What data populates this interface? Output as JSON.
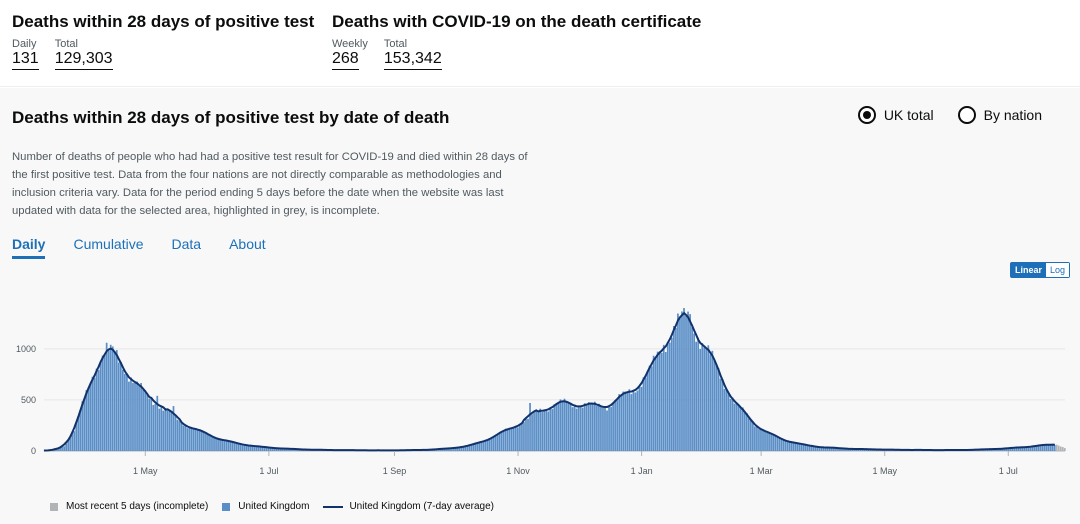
{
  "headline": {
    "left": {
      "title": "Deaths within 28 days of positive test",
      "metrics": [
        {
          "label": "Daily",
          "value": "131"
        },
        {
          "label": "Total",
          "value": "129,303"
        }
      ]
    },
    "right": {
      "title": "Deaths with COVID-19 on the death certificate",
      "metrics": [
        {
          "label": "Weekly",
          "value": "268"
        },
        {
          "label": "Total",
          "value": "153,342"
        }
      ]
    }
  },
  "card": {
    "title": "Deaths within 28 days of positive test by date of death",
    "radio_uk": "UK total",
    "radio_nation": "By nation",
    "description": "Number of deaths of people who had had a positive test result for COVID-19 and died within 28 days of the first positive test. Data from the four nations are not directly comparable as methodologies and inclusion criteria vary. Data for the period ending 5 days before the date when the website was last updated with data for the selected area, highlighted in grey, is incomplete.",
    "tabs": [
      "Daily",
      "Cumulative",
      "Data",
      "About"
    ],
    "scale_linear": "Linear",
    "scale_log": "Log"
  },
  "legend": {
    "incomplete": "Most recent 5 days (incomplete)",
    "uk": "United Kingdom",
    "avg": "United Kingdom (7-day average)"
  },
  "colors": {
    "bar": "#5a8ec7",
    "incomplete": "#b1b4b6",
    "line": "#12326b",
    "link": "#1d70b8"
  },
  "chart_data": {
    "type": "bar",
    "title": "Deaths within 28 days of positive test by date of death",
    "xlabel": "",
    "ylabel": "",
    "ylim": [
      0,
      1400
    ],
    "yticks": [
      0,
      500,
      1000
    ],
    "xticks": [
      {
        "day": 50,
        "label": "1 May"
      },
      {
        "day": 111,
        "label": "1 Jul"
      },
      {
        "day": 173,
        "label": "1 Sep"
      },
      {
        "day": 234,
        "label": "1 Nov"
      },
      {
        "day": 295,
        "label": "1 Jan"
      },
      {
        "day": 354,
        "label": "1 Mar"
      },
      {
        "day": 415,
        "label": "1 May"
      },
      {
        "day": 476,
        "label": "1 Jul"
      }
    ],
    "x_start": "2020-03-12",
    "days": 505,
    "incomplete_days": 5,
    "series": [
      {
        "name": "United Kingdom",
        "type": "bar"
      },
      {
        "name": "United Kingdom (7-day average)",
        "type": "line"
      }
    ],
    "daily_anchors": [
      [
        0,
        2
      ],
      [
        5,
        10
      ],
      [
        10,
        50
      ],
      [
        15,
        200
      ],
      [
        20,
        500
      ],
      [
        25,
        800
      ],
      [
        30,
        970
      ],
      [
        35,
        950
      ],
      [
        40,
        820
      ],
      [
        45,
        660
      ],
      [
        50,
        560
      ],
      [
        55,
        480
      ],
      [
        60,
        400
      ],
      [
        65,
        320
      ],
      [
        70,
        260
      ],
      [
        75,
        210
      ],
      [
        80,
        170
      ],
      [
        85,
        130
      ],
      [
        90,
        100
      ],
      [
        95,
        75
      ],
      [
        100,
        60
      ],
      [
        105,
        45
      ],
      [
        110,
        35
      ],
      [
        120,
        22
      ],
      [
        130,
        14
      ],
      [
        140,
        10
      ],
      [
        150,
        8
      ],
      [
        160,
        7
      ],
      [
        170,
        6
      ],
      [
        180,
        8
      ],
      [
        190,
        12
      ],
      [
        200,
        25
      ],
      [
        210,
        50
      ],
      [
        220,
        120
      ],
      [
        230,
        220
      ],
      [
        238,
        300
      ],
      [
        245,
        400
      ],
      [
        252,
        450
      ],
      [
        258,
        470
      ],
      [
        265,
        455
      ],
      [
        272,
        440
      ],
      [
        278,
        445
      ],
      [
        285,
        520
      ],
      [
        292,
        620
      ],
      [
        300,
        800
      ],
      [
        306,
        1050
      ],
      [
        312,
        1240
      ],
      [
        317,
        1300
      ],
      [
        322,
        1180
      ],
      [
        327,
        1000
      ],
      [
        335,
        700
      ],
      [
        342,
        450
      ],
      [
        350,
        280
      ],
      [
        357,
        180
      ],
      [
        365,
        110
      ],
      [
        375,
        60
      ],
      [
        385,
        35
      ],
      [
        400,
        20
      ],
      [
        420,
        12
      ],
      [
        440,
        9
      ],
      [
        455,
        10
      ],
      [
        465,
        16
      ],
      [
        475,
        25
      ],
      [
        485,
        40
      ],
      [
        495,
        60
      ],
      [
        500,
        65
      ],
      [
        504,
        30
      ]
    ],
    "spikes": [
      [
        31,
        1060
      ],
      [
        56,
        540
      ],
      [
        64,
        440
      ],
      [
        240,
        470
      ],
      [
        256,
        490
      ],
      [
        319,
        1340
      ]
    ]
  }
}
